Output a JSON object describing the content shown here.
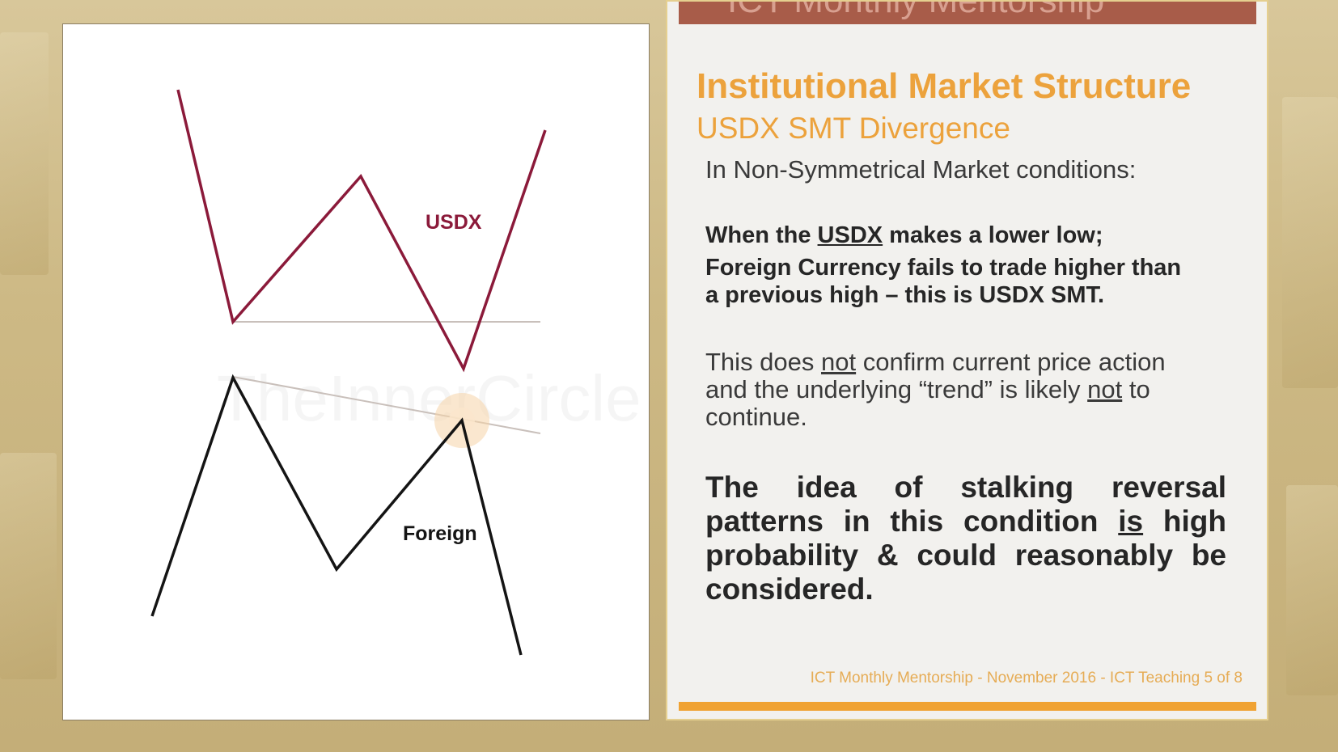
{
  "banner": {
    "text": "ICT Monthly Mentorship"
  },
  "diagram": {
    "usdx_label": "USDX",
    "foreign_label": "Foreign",
    "watermark": "TheInnerCircle",
    "colors": {
      "usdx": "#8b1a3a",
      "foreign": "#141414",
      "guideline": "#c9c0bb"
    }
  },
  "slide": {
    "title": "Institutional Market Structure",
    "subtitle": "USDX SMT Divergence",
    "intro": "In Non-Symmetrical Market conditions:",
    "rule": {
      "l1_a": "When the ",
      "l1_b": "USDX",
      "l1_c": " makes a lower low;",
      "l2": "Foreign Currency fails to trade higher than",
      "l3": "a previous high – this is USDX SMT."
    },
    "body": {
      "l1_a": "This does ",
      "l1_b": "not",
      "l1_c": " confirm current price action",
      "l2_a": "and the underlying “trend” is likely ",
      "l2_b": "not",
      "l2_c": " to",
      "l3": "continue."
    },
    "conclusion": {
      "a": "The idea of stalking reversal patterns in this condition ",
      "b": "is",
      "c": " high probability & could reasonably be considered."
    },
    "footer": "ICT Monthly Mentorship - November 2016 - ICT Teaching 5 of 8"
  },
  "colors": {
    "accent": "#eca23c",
    "banner": "#a85c49",
    "text": "#262626"
  }
}
